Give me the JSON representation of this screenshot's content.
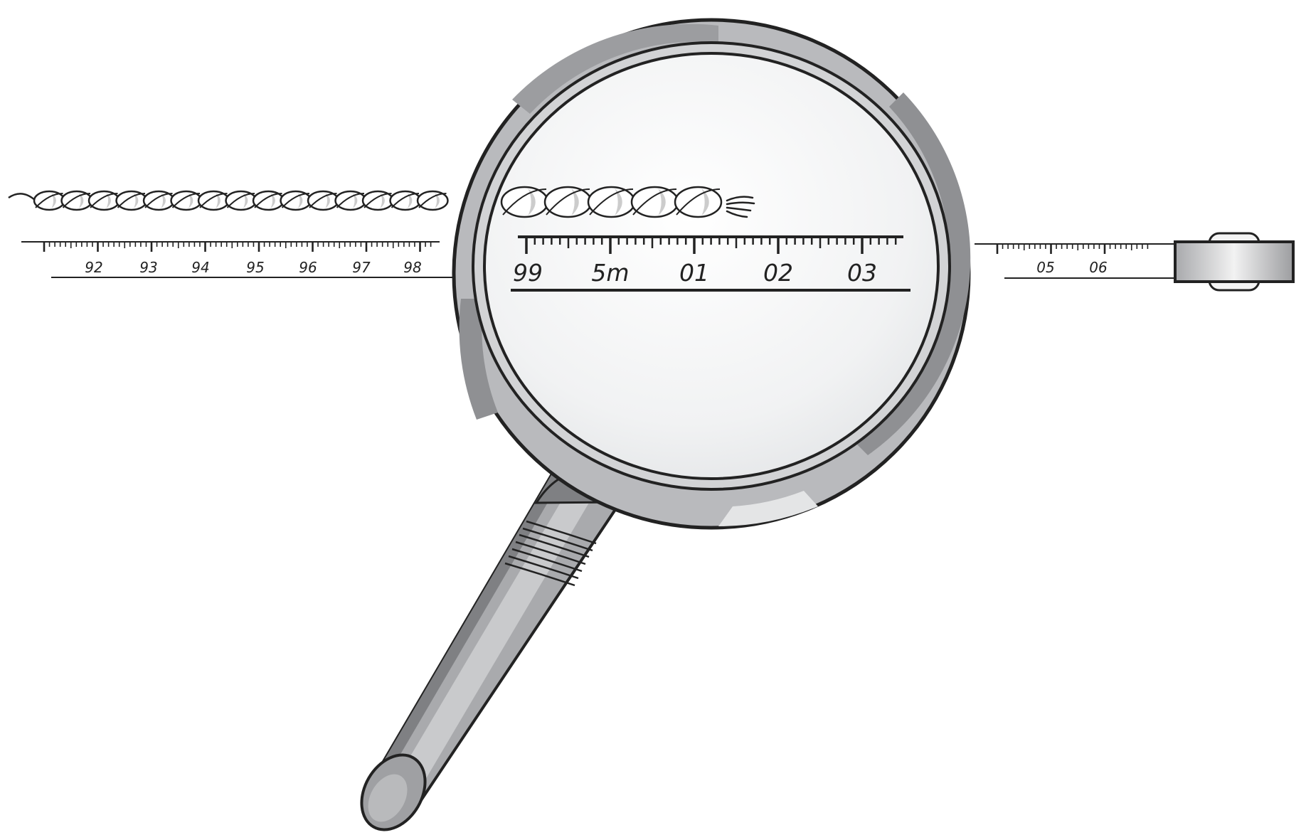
{
  "rope": {
    "fill": "#ffffff",
    "shade": "#cccccc",
    "stroke": "#222222"
  },
  "tape_left": {
    "labels": [
      "92",
      "93",
      "94",
      "95",
      "96",
      "97",
      "98"
    ]
  },
  "tape_magnified": {
    "labels": [
      "99",
      "5m",
      "01",
      "02",
      "03"
    ]
  },
  "tape_right": {
    "labels": [
      "05",
      "06"
    ]
  },
  "colors": {
    "outline": "#222222",
    "rim_light": "#c4c5c7",
    "rim_dark": "#8f9093",
    "lens": "#eef0f1",
    "handle": "#a9aaad",
    "handle_dark": "#7f8083",
    "handle_light": "#d7d8da"
  },
  "icons": [
    "magnifying-glass-icon",
    "tape-measure-reel-icon",
    "twisted-rope-icon"
  ]
}
